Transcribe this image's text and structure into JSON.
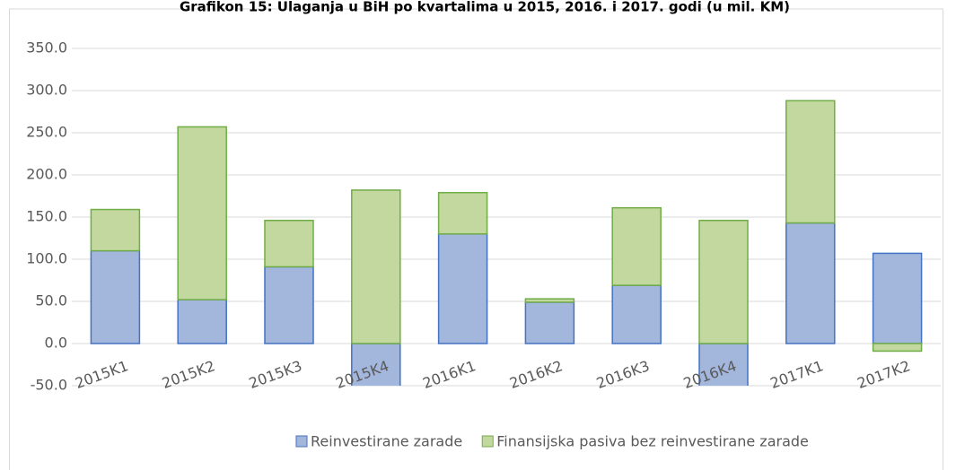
{
  "chart_data": {
    "type": "bar",
    "stacked": true,
    "title": "Grafikon 15: Ulaganja u BiH po kvartalima u 2015, 2016. i 2017. godi (u mil. KM)",
    "categories": [
      "2015K1",
      "2015K2",
      "2015K3",
      "2015K4",
      "2016K1",
      "2016K2",
      "2016K3",
      "2016K4",
      "2017K1",
      "2017K2"
    ],
    "series": [
      {
        "name": "Reinvestirane zarade",
        "color": "#a3b6dc",
        "values": [
          110,
          52,
          91,
          -60,
          130,
          49,
          69,
          -60,
          143,
          107
        ]
      },
      {
        "name": "Finansijska pasiva bez reinvestirane zarade",
        "color": "#c3d89e",
        "values": [
          49,
          205,
          55,
          182,
          49,
          4,
          92,
          146,
          145,
          -9
        ]
      }
    ],
    "ylim": [
      -50,
      350
    ],
    "yticks": [
      {
        "value": -50,
        "label": "-50.0"
      },
      {
        "value": 0,
        "label": "0.0"
      },
      {
        "value": 50,
        "label": "50.0"
      },
      {
        "value": 100,
        "label": "100.0"
      },
      {
        "value": 150,
        "label": "150.0"
      },
      {
        "value": 200,
        "label": "200.0"
      },
      {
        "value": 250,
        "label": "250.0"
      },
      {
        "value": 300,
        "label": "300.0"
      },
      {
        "value": 350,
        "label": "350.0"
      }
    ],
    "grid": true,
    "legend": "bottom"
  }
}
